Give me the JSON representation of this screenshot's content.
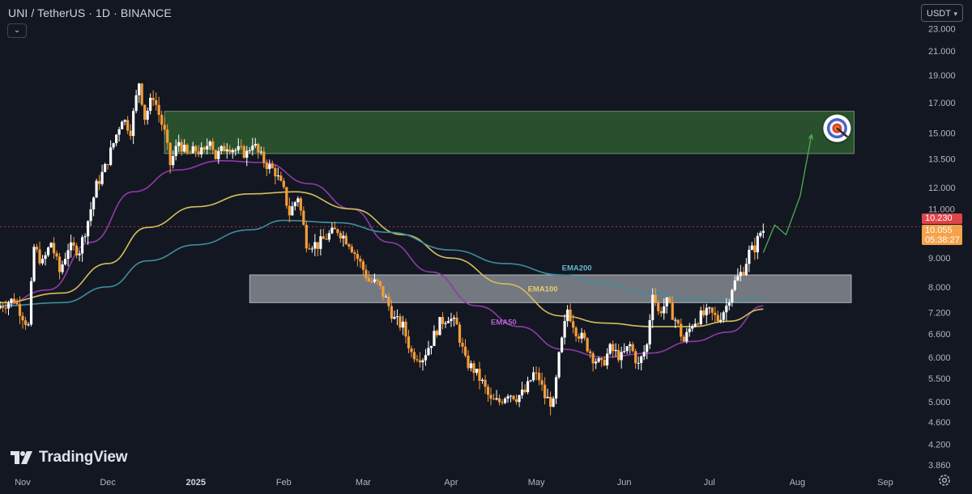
{
  "header": {
    "title": "UNI / TetherUS · 1D · BINANCE",
    "currency": "USDT",
    "collapse_icon": "chevron-down-icon"
  },
  "colors": {
    "background": "#131722",
    "candle_up": "#ffffff",
    "candle_down": "#f59d3a",
    "ema50": "#8e3ba5",
    "ema100": "#d4bf5a",
    "ema200": "#3d8d9c",
    "resistance_zone": "#2e5a2e",
    "support_zone": "#8f939b",
    "projection": "#4caf50",
    "last_price": "#e0454b",
    "current_price": "#f7a24a"
  },
  "price_labels": {
    "high": "10.230",
    "last": "10.055",
    "countdown": "05:38:27"
  },
  "branding": {
    "name": "TradingView"
  },
  "chart_data": {
    "type": "candlestick",
    "symbol": "UNI / TetherUS",
    "interval": "1D",
    "exchange": "BINANCE",
    "y_scale": "log",
    "ylim": [
      3.7,
      24.2
    ],
    "y_ticks": [
      "23.000",
      "21.000",
      "19.000",
      "17.000",
      "15.000",
      "13.500",
      "12.000",
      "11.000",
      "10.000",
      "9.000",
      "8.000",
      "7.200",
      "6.600",
      "6.000",
      "5.500",
      "5.000",
      "4.600",
      "4.200",
      "3.860"
    ],
    "x_ticks": [
      "Nov",
      "Dec",
      "2025",
      "Feb",
      "Mar",
      "Apr",
      "May",
      "Jun",
      "Jul",
      "Aug",
      "Sep"
    ],
    "x_tick_dates": [
      "2024-11-01",
      "2024-12-01",
      "2025-01-01",
      "2025-02-01",
      "2025-03-01",
      "2025-04-01",
      "2025-05-01",
      "2025-06-01",
      "2025-07-01",
      "2025-08-01",
      "2025-09-01"
    ],
    "xlim": [
      "2024-10-24",
      "2025-09-11"
    ],
    "close_anchors": [
      [
        "2024-10-24",
        7.4
      ],
      [
        "2024-10-29",
        7.6
      ],
      [
        "2024-11-03",
        6.8
      ],
      [
        "2024-11-05",
        9.4
      ],
      [
        "2024-11-08",
        8.8
      ],
      [
        "2024-11-11",
        9.6
      ],
      [
        "2024-11-14",
        8.5
      ],
      [
        "2024-11-17",
        9.4
      ],
      [
        "2024-11-21",
        9.3
      ],
      [
        "2024-11-24",
        10.5
      ],
      [
        "2024-11-27",
        12.1
      ],
      [
        "2024-11-30",
        13.0
      ],
      [
        "2024-12-03",
        14.4
      ],
      [
        "2024-12-06",
        16.0
      ],
      [
        "2024-12-09",
        15.2
      ],
      [
        "2024-12-12",
        18.5
      ],
      [
        "2024-12-14",
        16.0
      ],
      [
        "2024-12-17",
        17.5
      ],
      [
        "2024-12-19",
        16.2
      ],
      [
        "2024-12-21",
        15.0
      ],
      [
        "2024-12-23",
        13.2
      ],
      [
        "2024-12-26",
        14.5
      ],
      [
        "2024-12-29",
        13.7
      ],
      [
        "2025-01-01",
        14.0
      ],
      [
        "2025-01-04",
        13.8
      ],
      [
        "2025-01-06",
        14.8
      ],
      [
        "2025-01-08",
        13.6
      ],
      [
        "2025-01-12",
        14.3
      ],
      [
        "2025-01-15",
        14.0
      ],
      [
        "2025-01-19",
        13.8
      ],
      [
        "2025-01-21",
        14.5
      ],
      [
        "2025-01-23",
        13.8
      ],
      [
        "2025-01-26",
        13.2
      ],
      [
        "2025-01-29",
        12.8
      ],
      [
        "2025-02-01",
        11.8
      ],
      [
        "2025-02-03",
        10.8
      ],
      [
        "2025-02-06",
        11.6
      ],
      [
        "2025-02-09",
        9.6
      ],
      [
        "2025-02-13",
        9.5
      ],
      [
        "2025-02-17",
        9.9
      ],
      [
        "2025-02-20",
        10.1
      ],
      [
        "2025-02-24",
        9.6
      ],
      [
        "2025-02-28",
        8.8
      ],
      [
        "2025-03-03",
        8.2
      ],
      [
        "2025-03-06",
        8.1
      ],
      [
        "2025-03-09",
        7.6
      ],
      [
        "2025-03-12",
        7.0
      ],
      [
        "2025-03-15",
        6.8
      ],
      [
        "2025-03-18",
        6.1
      ],
      [
        "2025-03-22",
        6.0
      ],
      [
        "2025-03-25",
        6.4
      ],
      [
        "2025-03-28",
        6.9
      ],
      [
        "2025-03-31",
        7.1
      ],
      [
        "2025-04-03",
        6.8
      ],
      [
        "2025-04-06",
        5.9
      ],
      [
        "2025-04-09",
        5.7
      ],
      [
        "2025-04-12",
        5.4
      ],
      [
        "2025-04-15",
        5.0
      ],
      [
        "2025-04-18",
        5.0
      ],
      [
        "2025-04-21",
        5.2
      ],
      [
        "2025-04-24",
        5.1
      ],
      [
        "2025-04-27",
        5.2
      ],
      [
        "2025-04-30",
        5.6
      ],
      [
        "2025-05-02",
        5.5
      ],
      [
        "2025-05-04",
        5.1
      ],
      [
        "2025-05-07",
        4.95
      ],
      [
        "2025-05-09",
        6.0
      ],
      [
        "2025-05-12",
        7.3
      ],
      [
        "2025-05-15",
        6.7
      ],
      [
        "2025-05-18",
        6.4
      ],
      [
        "2025-05-21",
        6.0
      ],
      [
        "2025-05-24",
        5.8
      ],
      [
        "2025-05-27",
        6.2
      ],
      [
        "2025-05-31",
        6.0
      ],
      [
        "2025-06-03",
        6.3
      ],
      [
        "2025-06-06",
        5.8
      ],
      [
        "2025-06-09",
        6.3
      ],
      [
        "2025-06-11",
        7.9
      ],
      [
        "2025-06-13",
        7.2
      ],
      [
        "2025-06-16",
        7.5
      ],
      [
        "2025-06-19",
        7.0
      ],
      [
        "2025-06-22",
        6.4
      ],
      [
        "2025-06-25",
        6.9
      ],
      [
        "2025-06-28",
        7.1
      ],
      [
        "2025-07-01",
        7.2
      ],
      [
        "2025-07-04",
        7.0
      ],
      [
        "2025-07-07",
        7.4
      ],
      [
        "2025-07-09",
        8.0
      ],
      [
        "2025-07-11",
        8.3
      ],
      [
        "2025-07-13",
        8.6
      ],
      [
        "2025-07-15",
        9.2
      ],
      [
        "2025-07-17",
        9.4
      ],
      [
        "2025-07-19",
        10.0
      ],
      [
        "2025-07-20",
        10.055
      ]
    ],
    "ema_anchors": {
      "EMA50": [
        [
          "2024-10-24",
          7.4
        ],
        [
          "2024-11-10",
          7.9
        ],
        [
          "2024-11-25",
          9.6
        ],
        [
          "2024-12-10",
          11.8
        ],
        [
          "2024-12-25",
          12.9
        ],
        [
          "2025-01-10",
          13.4
        ],
        [
          "2025-01-25",
          13.3
        ],
        [
          "2025-02-10",
          12.2
        ],
        [
          "2025-02-25",
          11.0
        ],
        [
          "2025-03-10",
          9.6
        ],
        [
          "2025-03-25",
          8.5
        ],
        [
          "2025-04-10",
          7.4
        ],
        [
          "2025-04-25",
          6.8
        ],
        [
          "2025-05-10",
          6.2
        ],
        [
          "2025-05-25",
          6.0
        ],
        [
          "2025-06-10",
          6.1
        ],
        [
          "2025-06-25",
          6.4
        ],
        [
          "2025-07-08",
          6.65
        ],
        [
          "2025-07-20",
          7.4
        ]
      ],
      "EMA100": [
        [
          "2024-10-24",
          7.5
        ],
        [
          "2024-11-15",
          7.8
        ],
        [
          "2024-12-01",
          8.8
        ],
        [
          "2024-12-15",
          10.2
        ],
        [
          "2025-01-01",
          11.1
        ],
        [
          "2025-01-20",
          11.7
        ],
        [
          "2025-02-05",
          11.8
        ],
        [
          "2025-02-25",
          11.0
        ],
        [
          "2025-03-15",
          9.9
        ],
        [
          "2025-04-01",
          9.0
        ],
        [
          "2025-04-20",
          8.1
        ],
        [
          "2025-05-10",
          7.1
        ],
        [
          "2025-05-25",
          6.9
        ],
        [
          "2025-06-10",
          6.8
        ],
        [
          "2025-06-25",
          6.8
        ],
        [
          "2025-07-08",
          6.95
        ],
        [
          "2025-07-20",
          7.3
        ]
      ],
      "EMA200": [
        [
          "2024-10-24",
          7.4
        ],
        [
          "2024-11-15",
          7.5
        ],
        [
          "2024-12-01",
          8.0
        ],
        [
          "2024-12-15",
          8.9
        ],
        [
          "2025-01-01",
          9.5
        ],
        [
          "2025-01-20",
          10.1
        ],
        [
          "2025-02-01",
          10.5
        ],
        [
          "2025-02-20",
          10.4
        ],
        [
          "2025-03-10",
          10.0
        ],
        [
          "2025-04-01",
          9.3
        ],
        [
          "2025-04-20",
          8.8
        ],
        [
          "2025-05-10",
          8.4
        ],
        [
          "2025-05-25",
          8.1
        ],
        [
          "2025-06-10",
          7.8
        ],
        [
          "2025-06-25",
          7.6
        ],
        [
          "2025-07-08",
          7.55
        ],
        [
          "2025-07-20",
          7.65
        ]
      ]
    },
    "ema_labels": [
      {
        "name": "EMA200",
        "date": "2025-05-10",
        "price": 8.55,
        "color": "#5fb8cc"
      },
      {
        "name": "EMA100",
        "date": "2025-04-28",
        "price": 7.85,
        "color": "#e6cf6a"
      },
      {
        "name": "EMA50",
        "date": "2025-04-15",
        "price": 6.85,
        "color": "#b562d0"
      }
    ],
    "zones": [
      {
        "name": "resistance",
        "from": "2024-12-21",
        "to": "2025-08-21",
        "low": 13.8,
        "high": 16.4
      },
      {
        "name": "support",
        "from": "2025-01-20",
        "to": "2025-08-20",
        "low": 7.5,
        "high": 8.4
      }
    ],
    "projection_path": [
      [
        "2025-07-20",
        9.2
      ],
      [
        "2025-07-24",
        10.3
      ],
      [
        "2025-07-28",
        9.9
      ],
      [
        "2025-08-02",
        11.6
      ],
      [
        "2025-08-06",
        14.9
      ]
    ],
    "target_point": [
      "2025-08-15",
      15.3
    ],
    "high_line_price": 10.23,
    "last_price": 10.055
  }
}
